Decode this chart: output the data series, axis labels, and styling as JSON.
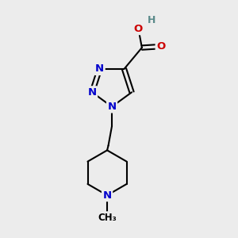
{
  "bg_color": "#ececec",
  "atom_colors": {
    "C": "#000000",
    "N": "#0000cc",
    "O": "#cc0000",
    "H": "#5a8a8a"
  },
  "bond_lw": 1.5,
  "figsize": [
    3.0,
    3.0
  ],
  "dpi": 100
}
